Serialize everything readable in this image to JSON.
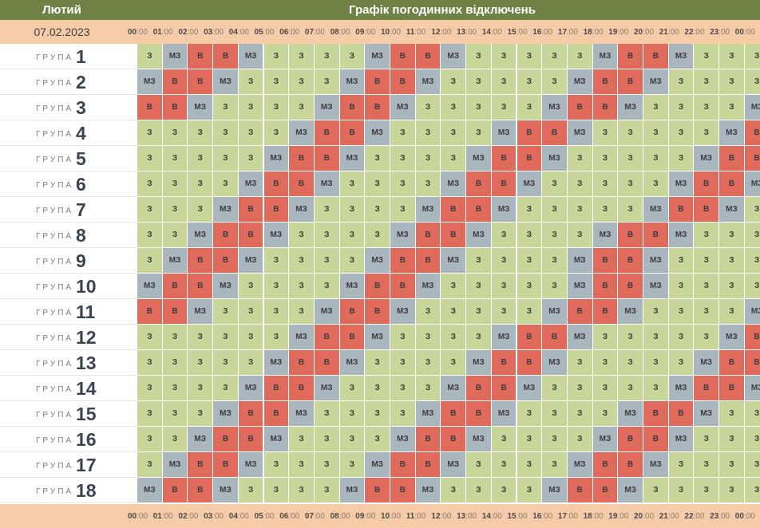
{
  "header": {
    "month": "Лютий",
    "title": "Графік погодинних відключень"
  },
  "date": "07.02.2023",
  "hours": [
    "00",
    "01",
    "02",
    "03",
    "04",
    "05",
    "06",
    "07",
    "08",
    "09",
    "10",
    "11",
    "12",
    "13",
    "14",
    "15",
    "16",
    "17",
    "18",
    "19",
    "20",
    "21",
    "22",
    "23",
    "00"
  ],
  "minutes_suffix": ":00",
  "group_word": "ГРУПА",
  "status_labels": {
    "z": "З",
    "mz": "МЗ",
    "v": "В"
  },
  "status_colors": {
    "z": "#c9d69a",
    "mz": "#aab6bd",
    "v": "#e06b5c"
  },
  "groups": [
    {
      "number": "1",
      "cells": [
        "z",
        "mz",
        "v",
        "v",
        "mz",
        "z",
        "z",
        "z",
        "z",
        "mz",
        "v",
        "v",
        "mz",
        "z",
        "z",
        "z",
        "z",
        "z",
        "mz",
        "v",
        "v",
        "mz",
        "z",
        "z",
        "z"
      ]
    },
    {
      "number": "2",
      "cells": [
        "mz",
        "v",
        "v",
        "mz",
        "z",
        "z",
        "z",
        "z",
        "mz",
        "v",
        "v",
        "mz",
        "z",
        "z",
        "z",
        "z",
        "z",
        "mz",
        "v",
        "v",
        "mz",
        "z",
        "z",
        "z",
        "z"
      ]
    },
    {
      "number": "3",
      "cells": [
        "v",
        "v",
        "mz",
        "z",
        "z",
        "z",
        "z",
        "mz",
        "v",
        "v",
        "mz",
        "z",
        "z",
        "z",
        "z",
        "z",
        "mz",
        "v",
        "v",
        "mz",
        "z",
        "z",
        "z",
        "z",
        "mz"
      ]
    },
    {
      "number": "4",
      "cells": [
        "z",
        "z",
        "z",
        "z",
        "z",
        "z",
        "mz",
        "v",
        "v",
        "mz",
        "z",
        "z",
        "z",
        "z",
        "mz",
        "v",
        "v",
        "mz",
        "z",
        "z",
        "z",
        "z",
        "z",
        "mz",
        "v"
      ]
    },
    {
      "number": "5",
      "cells": [
        "z",
        "z",
        "z",
        "z",
        "z",
        "mz",
        "v",
        "v",
        "mz",
        "z",
        "z",
        "z",
        "z",
        "mz",
        "v",
        "v",
        "mz",
        "z",
        "z",
        "z",
        "z",
        "z",
        "mz",
        "v",
        "v"
      ]
    },
    {
      "number": "6",
      "cells": [
        "z",
        "z",
        "z",
        "z",
        "mz",
        "v",
        "v",
        "mz",
        "z",
        "z",
        "z",
        "z",
        "mz",
        "v",
        "v",
        "mz",
        "z",
        "z",
        "z",
        "z",
        "z",
        "mz",
        "v",
        "v",
        "mz"
      ]
    },
    {
      "number": "7",
      "cells": [
        "z",
        "z",
        "z",
        "mz",
        "v",
        "v",
        "mz",
        "z",
        "z",
        "z",
        "z",
        "mz",
        "v",
        "v",
        "mz",
        "z",
        "z",
        "z",
        "z",
        "z",
        "mz",
        "v",
        "v",
        "mz",
        "z"
      ]
    },
    {
      "number": "8",
      "cells": [
        "z",
        "z",
        "mz",
        "v",
        "v",
        "mz",
        "z",
        "z",
        "z",
        "z",
        "mz",
        "v",
        "v",
        "mz",
        "z",
        "z",
        "z",
        "z",
        "mz",
        "v",
        "v",
        "mz",
        "z",
        "z",
        "z"
      ]
    },
    {
      "number": "9",
      "cells": [
        "z",
        "mz",
        "v",
        "v",
        "mz",
        "z",
        "z",
        "z",
        "z",
        "mz",
        "v",
        "v",
        "mz",
        "z",
        "z",
        "z",
        "z",
        "mz",
        "v",
        "v",
        "mz",
        "z",
        "z",
        "z",
        "z"
      ]
    },
    {
      "number": "10",
      "cells": [
        "mz",
        "v",
        "v",
        "mz",
        "z",
        "z",
        "z",
        "z",
        "mz",
        "v",
        "v",
        "mz",
        "z",
        "z",
        "z",
        "z",
        "z",
        "mz",
        "v",
        "v",
        "mz",
        "z",
        "z",
        "z",
        "z"
      ]
    },
    {
      "number": "11",
      "cells": [
        "v",
        "v",
        "mz",
        "z",
        "z",
        "z",
        "z",
        "mz",
        "v",
        "v",
        "mz",
        "z",
        "z",
        "z",
        "z",
        "z",
        "mz",
        "v",
        "v",
        "mz",
        "z",
        "z",
        "z",
        "z",
        "mz"
      ]
    },
    {
      "number": "12",
      "cells": [
        "z",
        "z",
        "z",
        "z",
        "z",
        "z",
        "mz",
        "v",
        "v",
        "mz",
        "z",
        "z",
        "z",
        "z",
        "mz",
        "v",
        "v",
        "mz",
        "z",
        "z",
        "z",
        "z",
        "z",
        "mz",
        "v"
      ]
    },
    {
      "number": "13",
      "cells": [
        "z",
        "z",
        "z",
        "z",
        "z",
        "mz",
        "v",
        "v",
        "mz",
        "z",
        "z",
        "z",
        "z",
        "mz",
        "v",
        "v",
        "mz",
        "z",
        "z",
        "z",
        "z",
        "z",
        "mz",
        "v",
        "v"
      ]
    },
    {
      "number": "14",
      "cells": [
        "z",
        "z",
        "z",
        "z",
        "mz",
        "v",
        "v",
        "mz",
        "z",
        "z",
        "z",
        "z",
        "mz",
        "v",
        "v",
        "mz",
        "z",
        "z",
        "z",
        "z",
        "z",
        "mz",
        "v",
        "v",
        "mz"
      ]
    },
    {
      "number": "15",
      "cells": [
        "z",
        "z",
        "z",
        "mz",
        "v",
        "v",
        "mz",
        "z",
        "z",
        "z",
        "z",
        "mz",
        "v",
        "v",
        "mz",
        "z",
        "z",
        "z",
        "z",
        "mz",
        "v",
        "v",
        "mz",
        "z",
        "z"
      ]
    },
    {
      "number": "16",
      "cells": [
        "z",
        "z",
        "mz",
        "v",
        "v",
        "mz",
        "z",
        "z",
        "z",
        "z",
        "mz",
        "v",
        "v",
        "mz",
        "z",
        "z",
        "z",
        "z",
        "mz",
        "v",
        "v",
        "mz",
        "z",
        "z",
        "z"
      ]
    },
    {
      "number": "17",
      "cells": [
        "z",
        "mz",
        "v",
        "v",
        "mz",
        "z",
        "z",
        "z",
        "z",
        "mz",
        "v",
        "v",
        "mz",
        "z",
        "z",
        "z",
        "z",
        "mz",
        "v",
        "v",
        "mz",
        "z",
        "z",
        "z",
        "z"
      ]
    },
    {
      "number": "18",
      "cells": [
        "mz",
        "v",
        "v",
        "mz",
        "z",
        "z",
        "z",
        "z",
        "mz",
        "v",
        "v",
        "mz",
        "z",
        "z",
        "z",
        "z",
        "mz",
        "v",
        "v",
        "mz",
        "z",
        "z",
        "z",
        "z",
        "z"
      ]
    }
  ]
}
